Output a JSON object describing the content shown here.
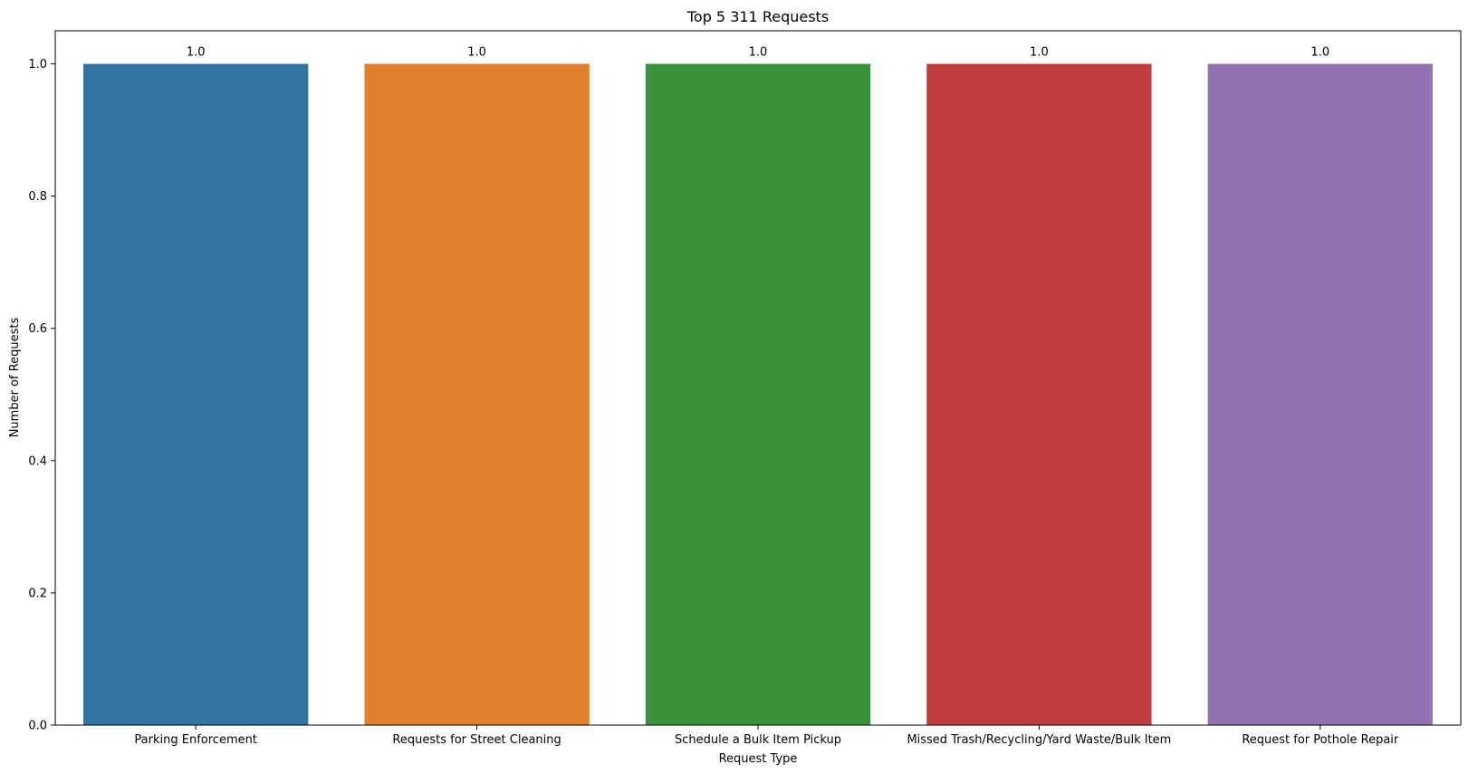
{
  "chart_data": {
    "type": "bar",
    "title": "Top 5 311 Requests",
    "xlabel": "Request Type",
    "ylabel": "Number of Requests",
    "categories": [
      "Parking Enforcement",
      "Requests for Street Cleaning",
      "Schedule a Bulk Item Pickup",
      "Missed Trash/Recycling/Yard Waste/Bulk Item",
      "Request for Pothole Repair"
    ],
    "values": [
      1.0,
      1.0,
      1.0,
      1.0,
      1.0
    ],
    "data_labels": [
      "1.0",
      "1.0",
      "1.0",
      "1.0",
      "1.0"
    ],
    "colors": [
      "#3274a1",
      "#e1812c",
      "#3a923a",
      "#c03d3e",
      "#9372b2"
    ],
    "ylim": [
      0,
      1.05
    ],
    "yticks": [
      0.0,
      0.2,
      0.4,
      0.6,
      0.8,
      1.0
    ],
    "ytick_labels": [
      "0.0",
      "0.2",
      "0.4",
      "0.6",
      "0.8",
      "1.0"
    ],
    "grid": false,
    "legend": "none"
  }
}
